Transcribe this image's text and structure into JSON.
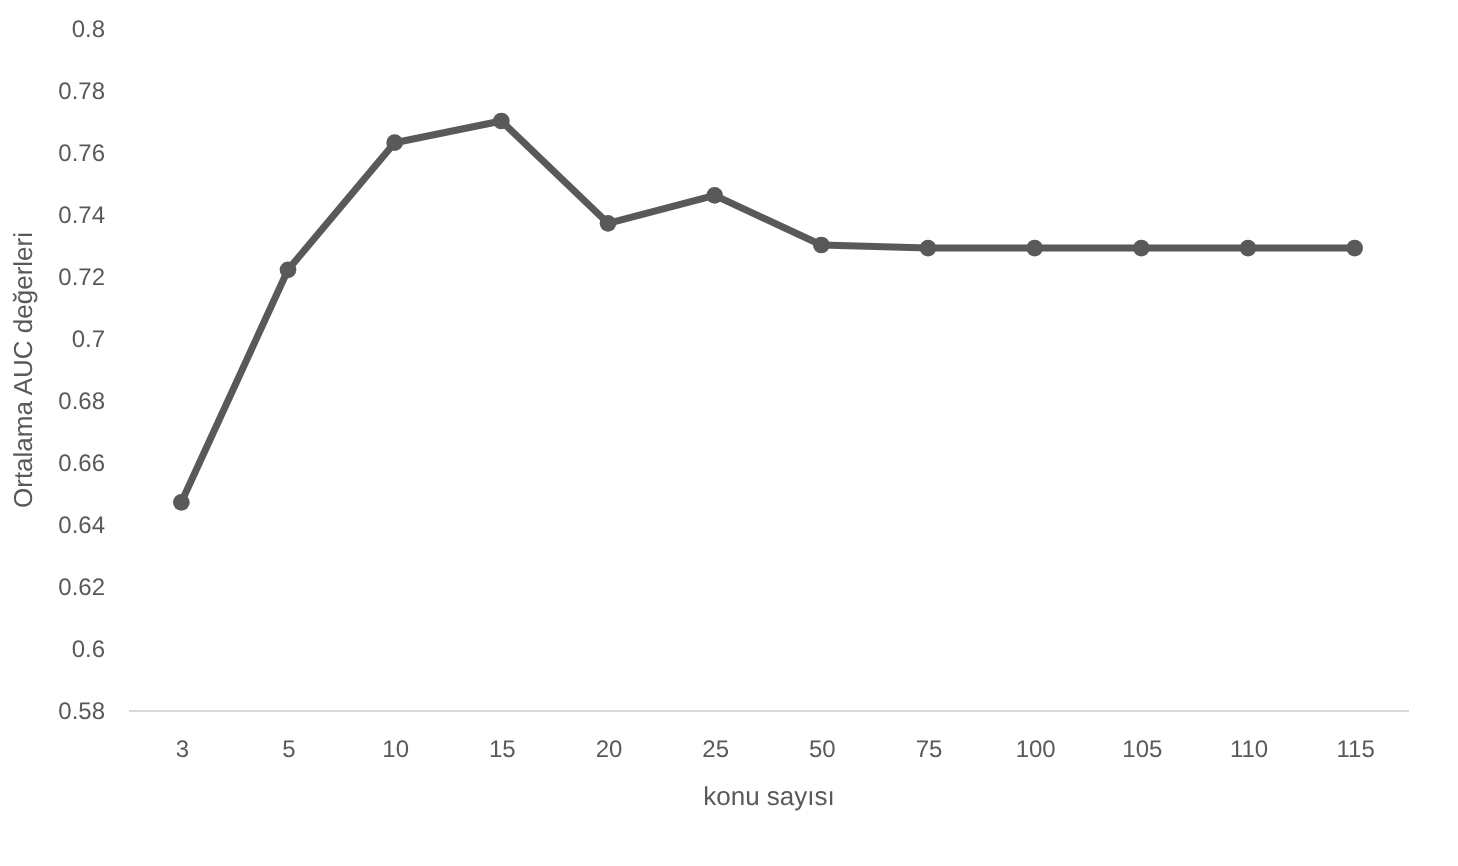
{
  "chart_data": {
    "type": "line",
    "xlabel": "konu sayısı",
    "ylabel": "Ortalama AUC değerleri",
    "categories": [
      "3",
      "5",
      "10",
      "15",
      "20",
      "25",
      "50",
      "75",
      "100",
      "105",
      "110",
      "115"
    ],
    "series": [
      {
        "color": "#595959",
        "values": [
          0.647,
          0.722,
          0.763,
          0.77,
          0.737,
          0.746,
          0.73,
          0.729,
          0.729,
          0.729,
          0.729,
          0.729
        ]
      }
    ],
    "ylim": [
      0.58,
      0.8
    ],
    "yticks": [
      0.58,
      0.6,
      0.62,
      0.64,
      0.66,
      0.68,
      0.7,
      0.72,
      0.74,
      0.76,
      0.78,
      0.8
    ],
    "grid": false,
    "legend": false,
    "marker": "circle",
    "line_style": "solid"
  }
}
